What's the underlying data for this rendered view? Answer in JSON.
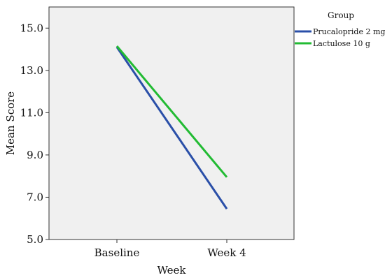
{
  "chart_data": {
    "type": "line",
    "xlabel": "Week",
    "ylabel": "Mean Score",
    "categories": [
      "Baseline",
      "Week 4"
    ],
    "ylim": [
      5.0,
      16.0
    ],
    "yticks": [
      "5.0",
      "7.0",
      "9.0",
      "11.0",
      "13.0",
      "15.0"
    ],
    "legend": {
      "title": "Group",
      "placement": "right"
    },
    "series": [
      {
        "name": "Prucalopride 2 mg",
        "values": [
          14.1,
          6.45
        ],
        "color": "#2a4fa8"
      },
      {
        "name": "Lactulose 10 g",
        "values": [
          14.15,
          7.95
        ],
        "color": "#22bb33"
      }
    ],
    "plot_background": "#f0f0f0",
    "grid": false
  }
}
